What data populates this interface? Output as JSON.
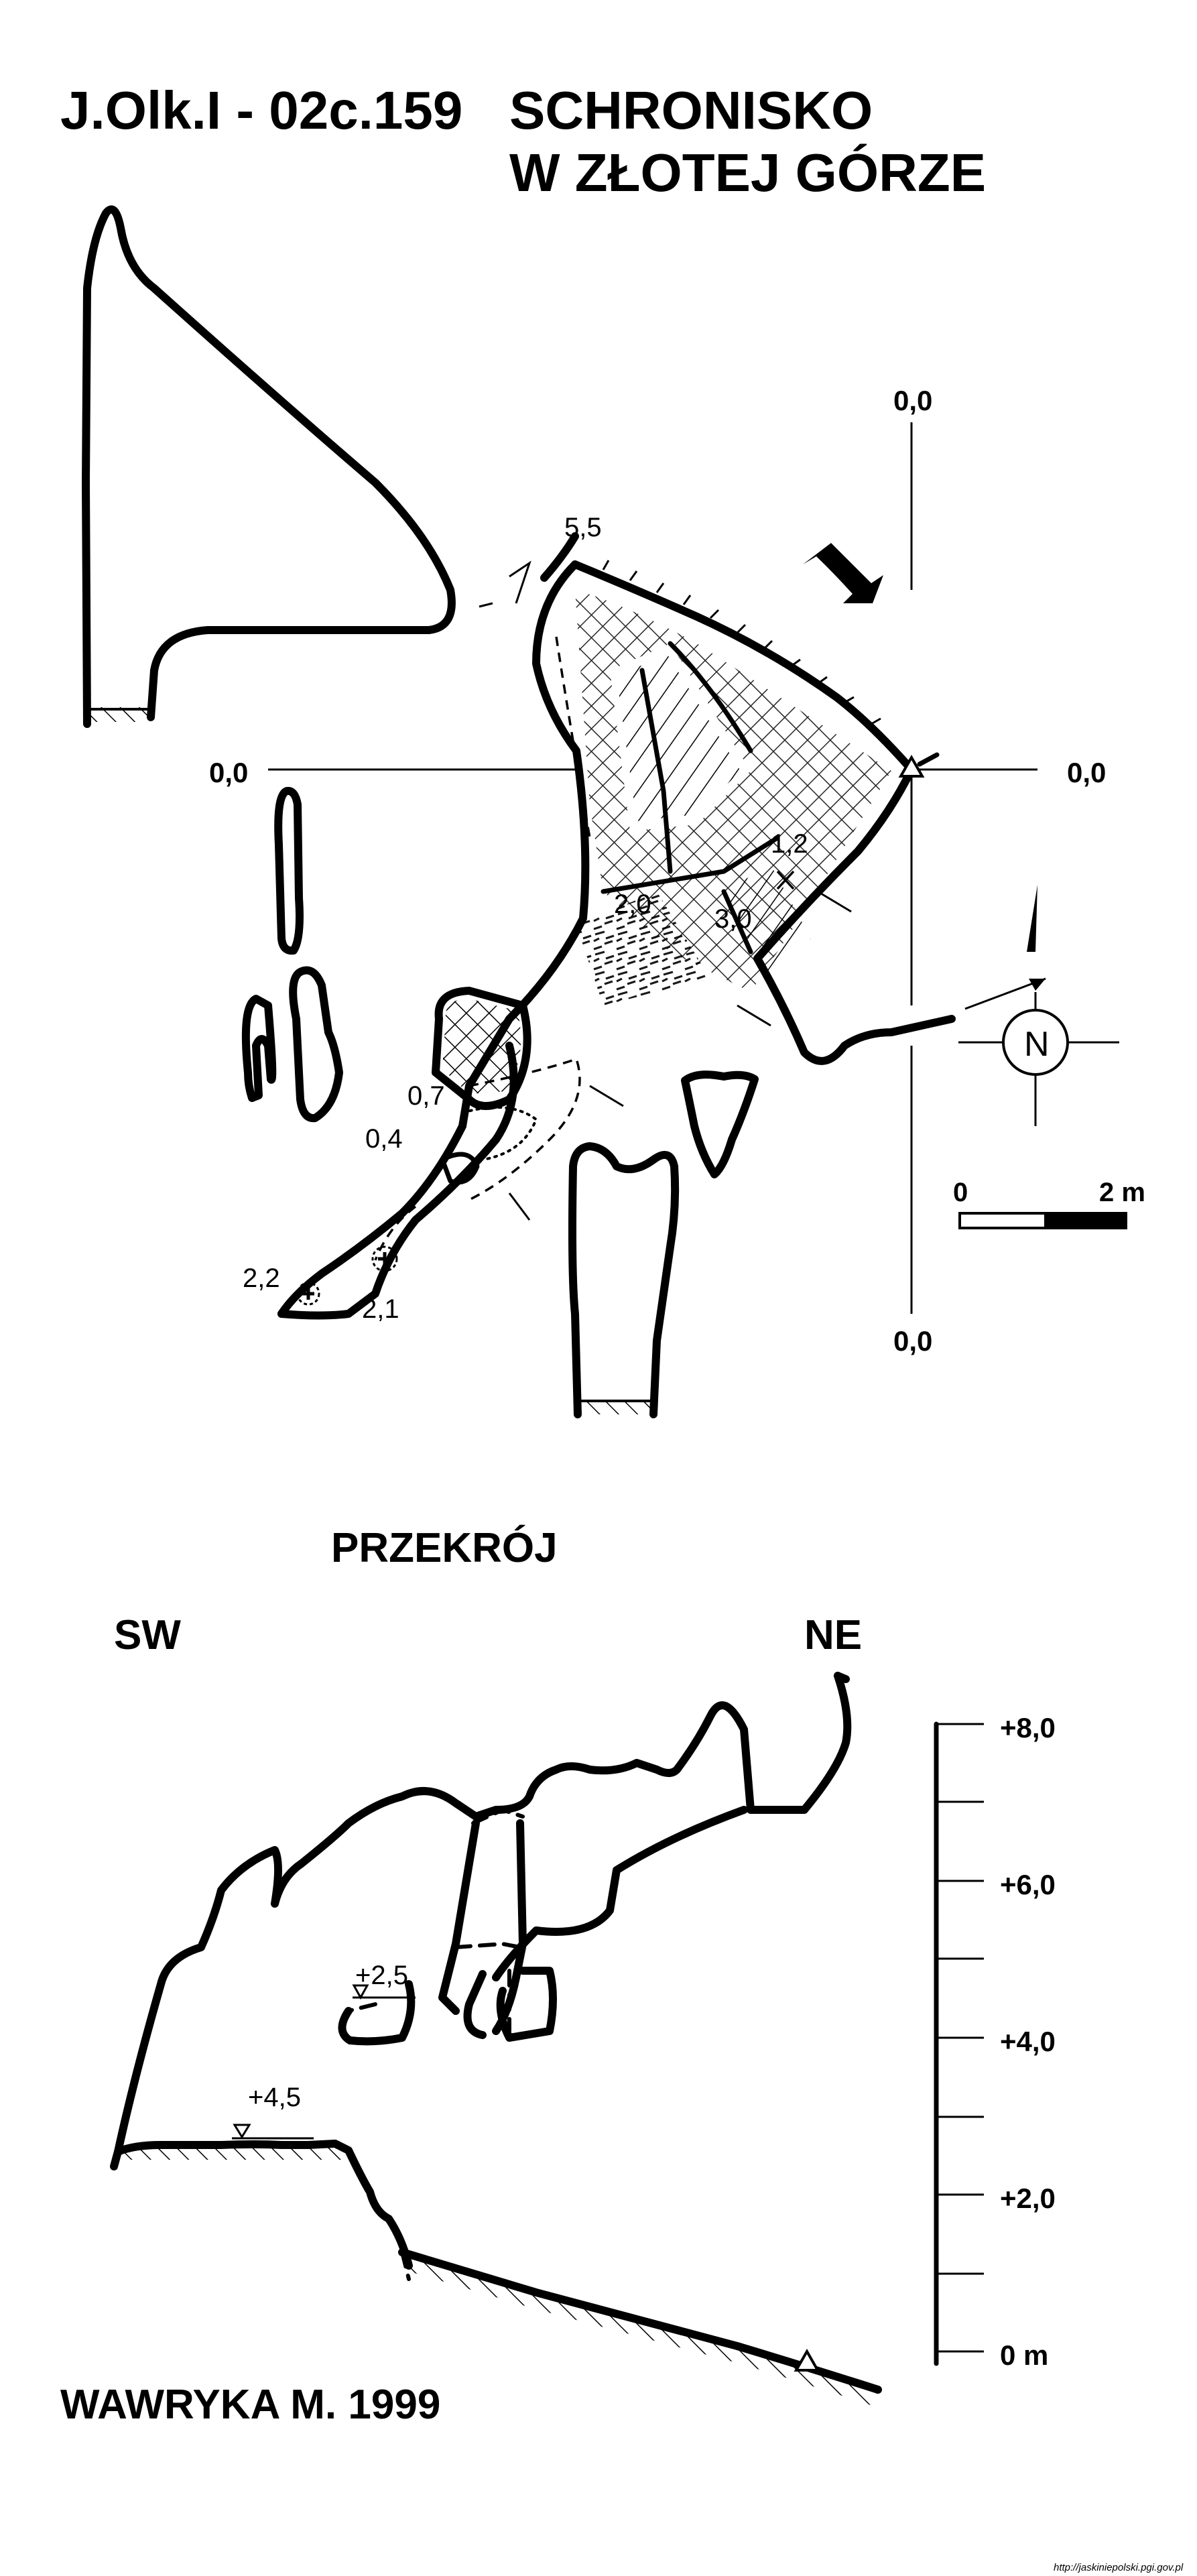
{
  "title": {
    "code": "J.Olk.I - 02c.159",
    "name_line1": "SCHRONISKO",
    "name_line2": "W ZŁOTEJ GÓRZE"
  },
  "plan": {
    "datum_labels": {
      "top": "0,0",
      "bottom": "0,0",
      "left": "0,0",
      "right": "0,0"
    },
    "heights": [
      "5,5",
      "1,2",
      "2,0",
      "3,0",
      "0,7",
      "0,4",
      "2,2",
      "2,1"
    ],
    "north_label": "N",
    "scale": {
      "start": "0",
      "end": "2 m"
    }
  },
  "section": {
    "title": "PRZEKRÓJ",
    "left_dir": "SW",
    "right_dir": "NE",
    "levels": [
      "+2,5",
      "+4,5"
    ],
    "scale_ticks": [
      "+8,0",
      "+6,0",
      "+4,0",
      "+2,0",
      "0 m"
    ]
  },
  "author": "WAWRYKA M. 1999",
  "source": "http://jaskiniepolski.pgi.gov.pl"
}
